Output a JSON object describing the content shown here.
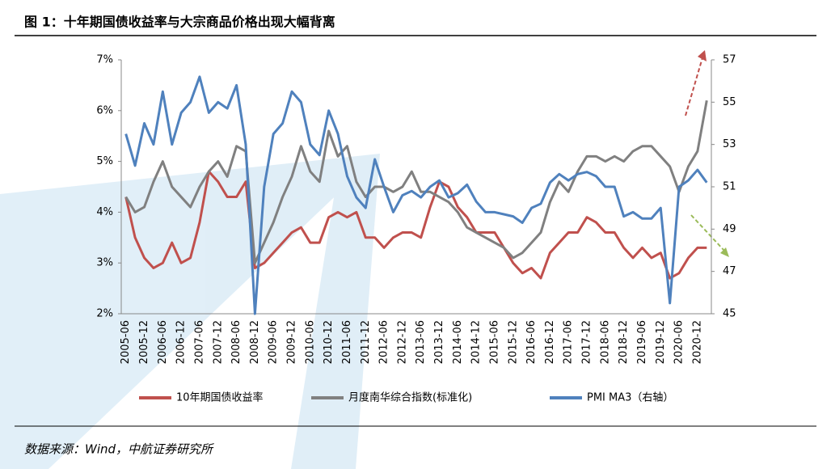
{
  "chart_data": {
    "type": "line",
    "title": "图 1：十年期国债收益率与大宗商品价格出现大幅背离",
    "source": "数据来源：Wind，中航证券研究所",
    "categories": [
      "2005-06",
      null,
      "2005-12",
      null,
      "2006-06",
      null,
      "2006-12",
      null,
      "2007-06",
      null,
      "2007-12",
      null,
      "2008-06",
      null,
      "2008-12",
      null,
      "2009-06",
      null,
      "2009-12",
      null,
      "2010-06",
      null,
      "2010-12",
      null,
      "2011-06",
      null,
      "2011-12",
      null,
      "2012-06",
      null,
      "2012-12",
      null,
      "2013-06",
      null,
      "2013-12",
      null,
      "2014-06",
      null,
      "2014-12",
      null,
      "2015-06",
      null,
      "2015-12",
      null,
      "2016-06",
      null,
      "2016-12",
      null,
      "2017-06",
      null,
      "2017-12",
      null,
      "2018-06",
      null,
      "2018-12",
      null,
      "2019-06",
      null,
      "2019-12",
      null,
      "2020-06",
      null,
      "2020-12",
      null
    ],
    "series": [
      {
        "name": "10年期国债收益率",
        "color": "#c0504d",
        "values": [
          4.3,
          3.5,
          3.1,
          2.9,
          3.0,
          3.4,
          3.0,
          3.1,
          3.8,
          4.8,
          4.6,
          4.3,
          4.3,
          4.6,
          2.9,
          3.0,
          3.2,
          3.4,
          3.6,
          3.7,
          3.4,
          3.4,
          3.9,
          4.0,
          3.9,
          4.0,
          3.5,
          3.5,
          3.3,
          3.5,
          3.6,
          3.6,
          3.5,
          4.1,
          4.6,
          4.5,
          4.1,
          3.9,
          3.6,
          3.6,
          3.6,
          3.3,
          3.0,
          2.8,
          2.9,
          2.7,
          3.2,
          3.4,
          3.6,
          3.6,
          3.9,
          3.8,
          3.6,
          3.6,
          3.3,
          3.1,
          3.3,
          3.1,
          3.2,
          2.7,
          2.8,
          3.1,
          3.3,
          3.3
        ]
      },
      {
        "name": "月度南华综合指数(标准化)",
        "color": "#808080",
        "values": [
          4.3,
          4.0,
          4.1,
          4.6,
          5.0,
          4.5,
          4.3,
          4.1,
          4.5,
          4.8,
          5.0,
          4.7,
          5.3,
          5.2,
          3.0,
          3.4,
          3.8,
          4.3,
          4.7,
          5.3,
          4.8,
          4.6,
          5.6,
          5.1,
          5.3,
          4.6,
          4.3,
          4.5,
          4.5,
          4.4,
          4.5,
          4.8,
          4.4,
          4.4,
          4.3,
          4.2,
          4.0,
          3.7,
          3.6,
          3.5,
          3.4,
          3.3,
          3.1,
          3.2,
          3.4,
          3.6,
          4.2,
          4.6,
          4.4,
          4.8,
          5.1,
          5.1,
          5.0,
          5.1,
          5.0,
          5.2,
          5.3,
          5.3,
          5.1,
          4.9,
          4.4,
          4.9,
          5.2,
          6.2
        ]
      },
      {
        "name": "PMI MA3（右轴）",
        "color": "#4f81bd",
        "axis": "y2",
        "values": [
          53.5,
          52.0,
          54.0,
          53.0,
          55.5,
          53.0,
          54.5,
          55.0,
          56.2,
          54.5,
          55.0,
          54.7,
          55.8,
          53.0,
          45.0,
          51.0,
          53.5,
          54.0,
          55.5,
          55.0,
          53.0,
          52.5,
          54.6,
          53.5,
          51.5,
          50.5,
          50.0,
          52.3,
          51.0,
          49.8,
          50.6,
          50.8,
          50.5,
          51.0,
          51.3,
          50.5,
          50.7,
          51.1,
          50.3,
          49.8,
          49.8,
          49.7,
          49.6,
          49.3,
          50.0,
          50.2,
          51.2,
          51.6,
          51.3,
          51.6,
          51.7,
          51.5,
          51.0,
          51.0,
          49.6,
          49.8,
          49.5,
          49.5,
          50.0,
          45.5,
          51.0,
          51.3,
          51.8,
          51.2
        ]
      }
    ],
    "ylim": [
      2,
      7
    ],
    "yticks": [
      {
        "value": 2,
        "label": "2%"
      },
      {
        "value": 3,
        "label": "3%"
      },
      {
        "value": 4,
        "label": "4%"
      },
      {
        "value": 5,
        "label": "5%"
      },
      {
        "value": 6,
        "label": "6%"
      },
      {
        "value": 7,
        "label": "7%"
      }
    ],
    "y2lim": [
      45,
      57
    ],
    "y2ticks": [
      45,
      47,
      49,
      51,
      53,
      55,
      57
    ],
    "legend": "bottom"
  }
}
